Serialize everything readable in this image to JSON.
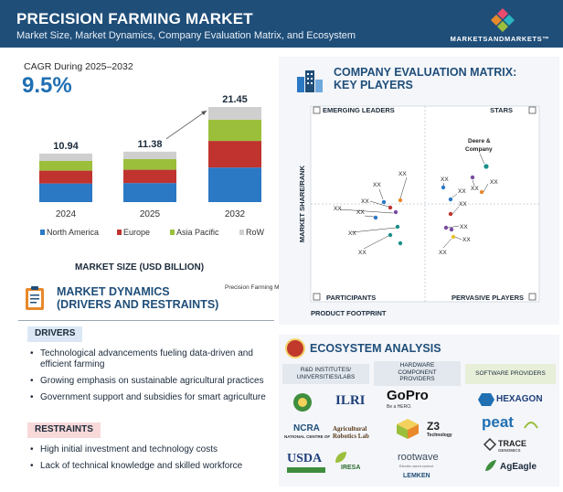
{
  "header": {
    "title": "PRECISION FARMING MARKET",
    "subtitle": "Market Size, Market Dynamics, Company Evaluation Matrix, and Ecosystem",
    "logo_text": "MARKETSANDMARKETS™"
  },
  "cagr": {
    "label": "CAGR During 2025–2032",
    "value": "9.5%"
  },
  "chart_data": {
    "type": "bar",
    "stacked": true,
    "categories": [
      "2024",
      "2025",
      "2032"
    ],
    "totals": [
      10.94,
      11.38,
      21.45
    ],
    "total_labels": [
      "10.94",
      "11.38",
      "21.45"
    ],
    "series": [
      {
        "name": "North America",
        "values": [
          4.2,
          4.3,
          7.8
        ],
        "color": "#2b78c4"
      },
      {
        "name": "Europe",
        "values": [
          2.9,
          3.0,
          6.0
        ],
        "color": "#c0332f"
      },
      {
        "name": "Asia Pacific",
        "values": [
          2.2,
          2.4,
          4.8
        ],
        "color": "#9bbf3b"
      },
      {
        "name": "RoW",
        "values": [
          1.64,
          1.68,
          2.85
        ],
        "color": "#cfcfcf"
      }
    ],
    "xlabel": "MARKET SIZE (USD BILLION)",
    "ylim": [
      0,
      21.45
    ],
    "legend_position": "bottom",
    "grid": false,
    "trend_arrow": "2025-2032"
  },
  "dynamics": {
    "title_line1": "MARKET DYNAMICS",
    "title_line2": "(DRIVERS AND RESTRAINTS)",
    "note": "Precision Farming Market",
    "drivers_label": "DRIVERS",
    "drivers": [
      "Technological advancements fueling data-driven and efficient farming",
      "Growing emphasis on sustainable agricultural practices",
      "Government support and subsidies for smart agriculture"
    ],
    "restraints_label": "RESTRAINTS",
    "restraints": [
      "High initial investment and technology costs",
      "Lack of technical knowledge and skilled workforce"
    ]
  },
  "matrix": {
    "title_line1": "COMPANY EVALUATION MATRIX:",
    "title_line2": "KEY PLAYERS",
    "quadrants": {
      "top_left": "EMERGING LEADERS",
      "top_right": "STARS",
      "bottom_left": "PARTICIPANTS",
      "bottom_right": "PERVASIVE PLAYERS"
    },
    "y_axis": "MARKET SHARE/RANK",
    "x_axis": "PRODUCT FOOTPRINT",
    "leader_line1": "Deere &",
    "leader_line2": "Company",
    "placeholder": "XX",
    "colors": {
      "teal": "#1a8f8a",
      "orange": "#e8892b",
      "blue": "#2b78c4",
      "purple": "#7a4aa0",
      "red": "#c0332f",
      "yellow": "#e8c22b"
    }
  },
  "ecosystem": {
    "title": "ECOSYSTEM ANALYSIS",
    "columns": [
      {
        "title_line1": "R&D INSTITUTES/",
        "title_line2": "UNIVERSITIES/LABS"
      },
      {
        "title_line1": "HARDWARE",
        "title_line2": "COMPONENT",
        "title_line3": "PROVIDERS"
      },
      {
        "title_line1": "SOFTWARE PROVIDERS"
      }
    ],
    "logos": {
      "ilri": "ILRI",
      "ncra": "NCRA",
      "ncra_sub": "NATIONAL CENTRE OF",
      "arl_line1": "Agricultural",
      "arl_line2": "Robotics Lab",
      "usda": "USDA",
      "iresa": "IRESA",
      "gopro": "GoPro",
      "gopro_sub": "Be a HERO.",
      "z3": "Z3",
      "z3_sub": "Technology",
      "rootwave": "rootwave",
      "rootwave_sub": "Electric weed control",
      "lemken": "LEMKEN",
      "hexagon": "HEXAGON",
      "peat": "peat",
      "trace": "TRACE",
      "trace_sub": "GENOMICS",
      "ageagle": "AgEagle"
    }
  }
}
